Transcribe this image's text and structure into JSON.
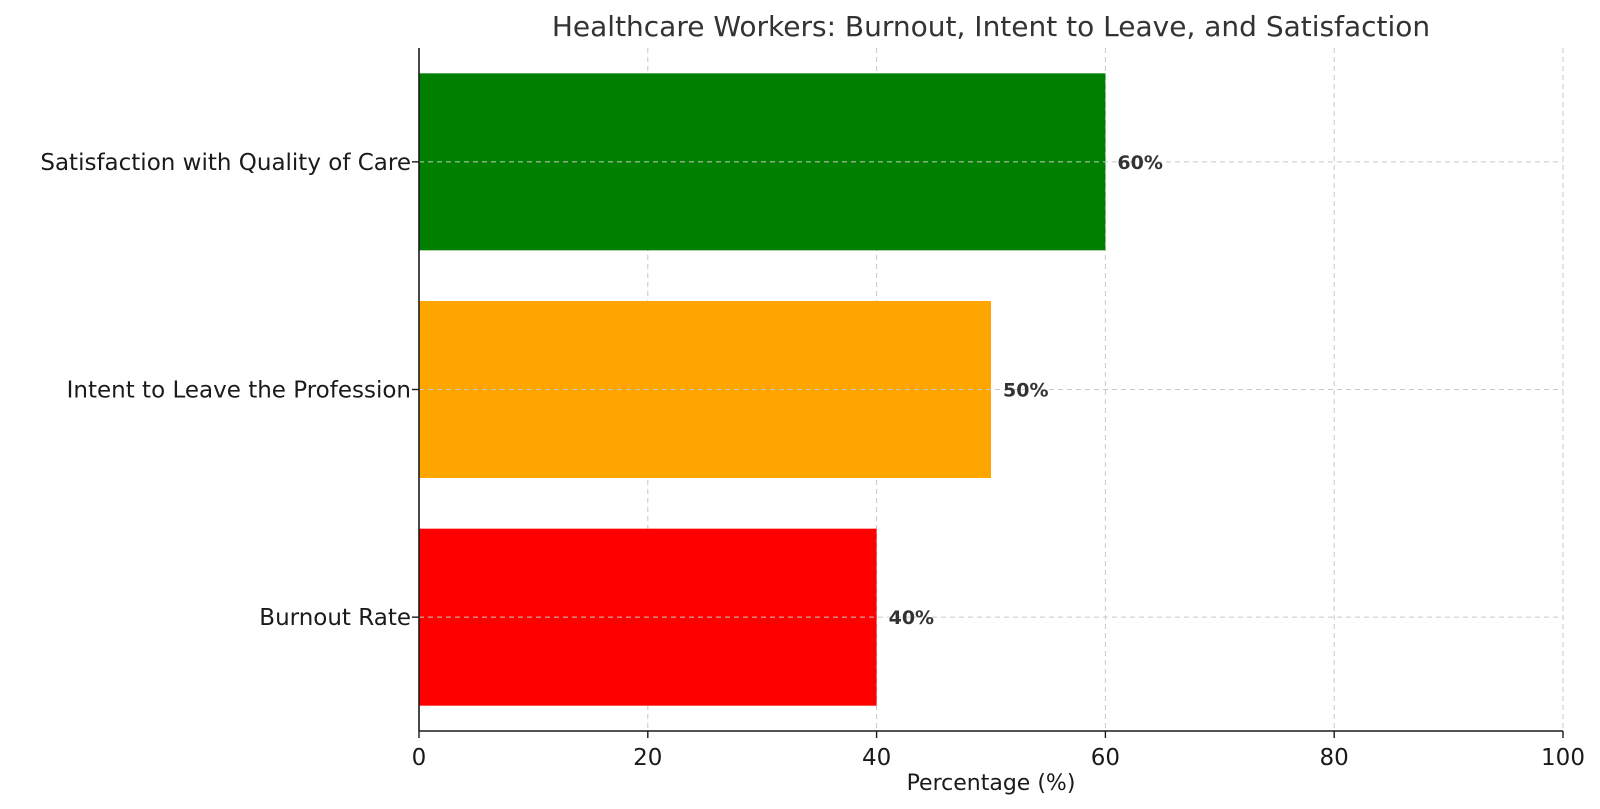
{
  "chart_data": {
    "type": "bar",
    "orientation": "horizontal",
    "title": "Healthcare Workers: Burnout, Intent to Leave, and Satisfaction",
    "xlabel": "Percentage (%)",
    "ylabel": "",
    "xlim": [
      0,
      100
    ],
    "xticks": [
      0,
      20,
      40,
      60,
      80,
      100
    ],
    "xtick_labels": [
      "0",
      "20",
      "40",
      "60",
      "80",
      "100"
    ],
    "grid": true,
    "categories": [
      "Burnout Rate",
      "Intent to Leave the Profession",
      "Satisfaction with Quality of Care"
    ],
    "values": [
      40,
      50,
      60
    ],
    "data_labels": [
      "40%",
      "50%",
      "60%"
    ],
    "colors": [
      "#ff0000",
      "#ffa500",
      "#008000"
    ]
  }
}
